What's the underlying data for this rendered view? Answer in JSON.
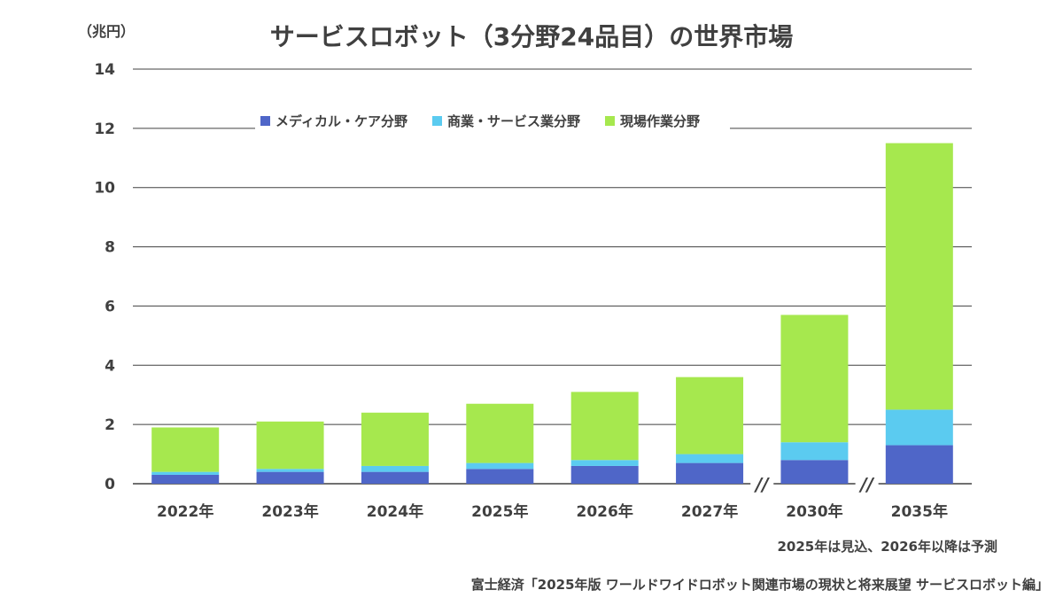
{
  "chart_data": {
    "type": "bar",
    "stacked": true,
    "title": "サービスロボット（3分野24品目）の世界市場",
    "ylabel": "（兆円）",
    "ylim": [
      0,
      14
    ],
    "yticks": [
      0,
      2,
      4,
      6,
      8,
      10,
      12,
      14
    ],
    "yticklabels": [
      "0",
      "2",
      "4",
      "6",
      "8",
      "10",
      "12",
      "14"
    ],
    "grid": true,
    "legend_position": "top",
    "categories": [
      "2022年",
      "2023年",
      "2024年",
      "2025年",
      "2026年",
      "2027年",
      "2030年",
      "2035年"
    ],
    "axis_breaks": [
      "//",
      "//"
    ],
    "series": [
      {
        "name": "メディカル・ケア分野",
        "color": "#4F66C8",
        "values": [
          0.3,
          0.4,
          0.4,
          0.5,
          0.6,
          0.7,
          0.8,
          1.3
        ]
      },
      {
        "name": "商業・サービス業分野",
        "color": "#5BCBF0",
        "values": [
          0.1,
          0.1,
          0.2,
          0.2,
          0.2,
          0.3,
          0.6,
          1.2
        ]
      },
      {
        "name": "現場作業分野",
        "color": "#A6E84E",
        "values": [
          1.5,
          1.6,
          1.8,
          2.0,
          2.3,
          2.6,
          4.3,
          9.0
        ]
      }
    ],
    "note": "2025年は見込、2026年以降は予測",
    "source": "富士経済「2025年版 ワールドワイドロボット関連市場の現状と将来展望 サービスロボット編」"
  }
}
